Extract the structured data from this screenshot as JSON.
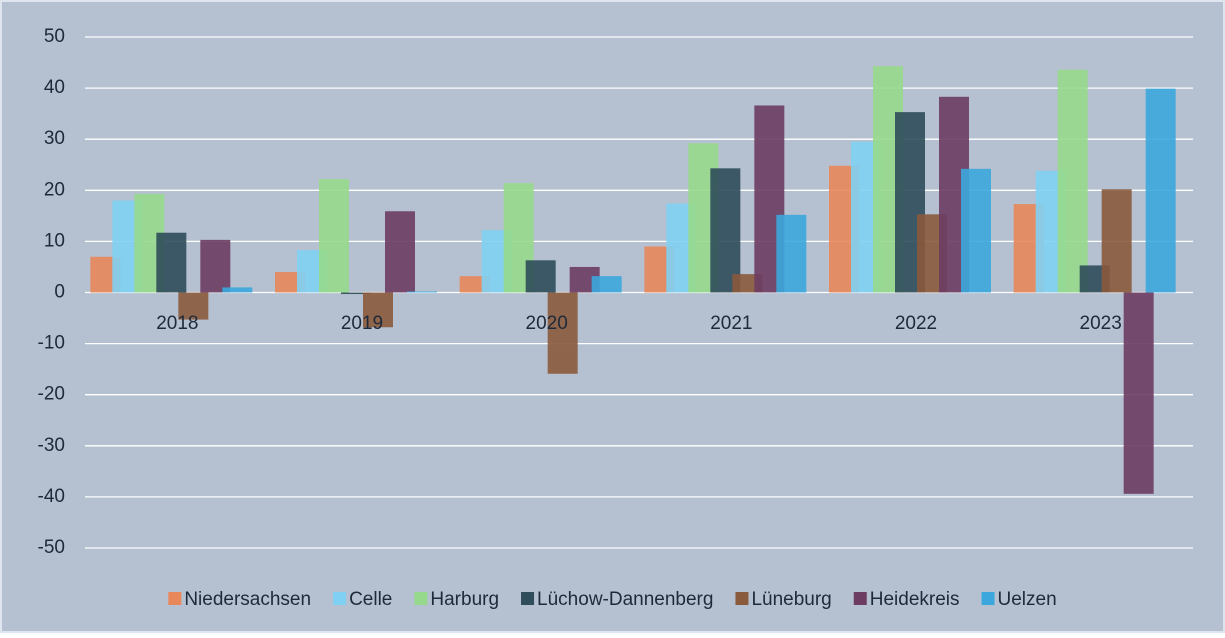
{
  "chart_data": {
    "type": "bar",
    "categories": [
      "2018",
      "2019",
      "2020",
      "2021",
      "2022",
      "2023"
    ],
    "series": [
      {
        "name": "Niedersachsen",
        "color": "#e8875a",
        "values": [
          7,
          4,
          3.2,
          9,
          24.8,
          17.3
        ]
      },
      {
        "name": "Celle",
        "color": "#7fd0f2",
        "values": [
          18,
          8.3,
          12.2,
          17.4,
          29.5,
          23.8
        ]
      },
      {
        "name": "Harburg",
        "color": "#97d98c",
        "values": [
          19.3,
          22.2,
          21.4,
          29.2,
          44.3,
          43.6
        ]
      },
      {
        "name": "Lüchow-Dannenberg",
        "color": "#2f4d5a",
        "values": [
          11.7,
          -0.3,
          6.3,
          24.3,
          35.3,
          5.3
        ]
      },
      {
        "name": "Lüneburg",
        "color": "#8a5a3c",
        "values": [
          -5.3,
          -6.8,
          -15.9,
          3.6,
          15.3,
          20.2
        ]
      },
      {
        "name": "Heidekreis",
        "color": "#6c3c62",
        "values": [
          10.3,
          15.9,
          5,
          36.6,
          38.3,
          -39.4
        ]
      },
      {
        "name": "Uelzen",
        "color": "#3ba7dc",
        "values": [
          1,
          0.2,
          3.2,
          15.2,
          24.2,
          39.9
        ]
      }
    ],
    "ylim": [
      -50,
      50
    ],
    "yticks": [
      -50,
      -40,
      -30,
      -20,
      -10,
      0,
      10,
      20,
      30,
      40,
      50
    ],
    "grid": true
  }
}
